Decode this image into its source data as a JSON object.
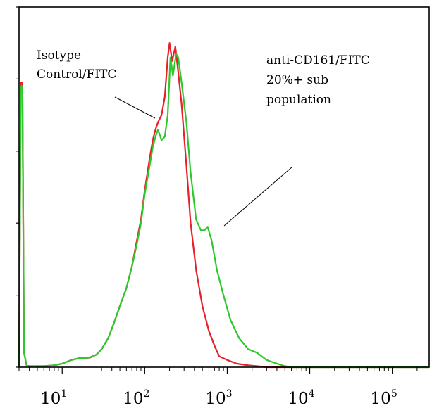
{
  "chart_data": {
    "type": "line",
    "title": "",
    "xlabel": "",
    "ylabel": "",
    "x_scale": "log",
    "xlim": [
      3,
      280000
    ],
    "ylim": [
      0,
      100
    ],
    "grid": false,
    "y_tick_values": [
      0,
      20,
      40,
      60,
      80,
      100
    ],
    "x_ticks": [
      {
        "value": 10,
        "base": "10",
        "exp": "1"
      },
      {
        "value": 100,
        "base": "10",
        "exp": "2"
      },
      {
        "value": 1000,
        "base": "10",
        "exp": "3"
      },
      {
        "value": 10000,
        "base": "10",
        "exp": "4"
      },
      {
        "value": 100000,
        "base": "10",
        "exp": "5"
      }
    ],
    "annotations": [
      {
        "lines": [
          "Isotype",
          "Control/FITC"
        ],
        "points_to": 150,
        "series": "red"
      },
      {
        "lines": [
          "anti-CD161/FITC",
          "20%+ sub",
          "population"
        ],
        "points_to": 600,
        "series": "green"
      }
    ],
    "series": [
      {
        "color": "#e8202a",
        "x": [
          3,
          3.15,
          3.3,
          3.45,
          3.7,
          4,
          5,
          6,
          8,
          10,
          13,
          16,
          19,
          22,
          26,
          30,
          36,
          42,
          50,
          60,
          70,
          80,
          90,
          100,
          115,
          125,
          135,
          145,
          160,
          175,
          190,
          200,
          215,
          235,
          255,
          280,
          320,
          360,
          420,
          500,
          600,
          700,
          800,
          1000,
          1300,
          1800,
          2500,
          3000,
          280000
        ],
        "values": [
          0,
          79,
          79,
          4,
          0.5,
          0.3,
          0.3,
          0.3,
          0.5,
          1,
          2,
          2.5,
          2.5,
          2.7,
          3.5,
          5,
          8,
          12,
          17,
          22,
          28,
          35,
          41,
          49,
          58,
          63,
          66,
          68,
          70,
          75,
          86,
          90,
          85,
          89,
          82,
          73,
          56,
          40,
          27,
          17,
          10,
          6,
          3,
          2,
          1,
          0.5,
          0.2,
          0,
          0
        ]
      },
      {
        "color": "#2ec82e",
        "x": [
          3,
          3.15,
          3.3,
          3.45,
          3.7,
          4,
          5,
          6,
          8,
          10,
          13,
          16,
          19,
          22,
          26,
          30,
          36,
          42,
          50,
          60,
          70,
          80,
          90,
          100,
          115,
          125,
          135,
          145,
          160,
          175,
          190,
          205,
          220,
          240,
          255,
          280,
          320,
          360,
          420,
          480,
          530,
          580,
          650,
          750,
          900,
          1100,
          1400,
          1800,
          2300,
          3000,
          4000,
          5000,
          6000,
          280000
        ],
        "values": [
          0,
          78,
          78,
          4,
          0.5,
          0.3,
          0.3,
          0.3,
          0.5,
          1,
          2,
          2.5,
          2.5,
          2.8,
          3.5,
          5,
          8,
          12,
          17,
          22,
          28,
          34,
          40,
          48,
          56,
          61,
          64,
          66,
          63,
          64,
          70,
          86,
          81,
          87,
          86,
          79,
          68,
          54,
          41,
          38,
          38,
          39,
          35,
          27,
          20,
          13,
          8,
          5,
          4,
          2,
          1,
          0.3,
          0,
          0
        ]
      }
    ]
  }
}
